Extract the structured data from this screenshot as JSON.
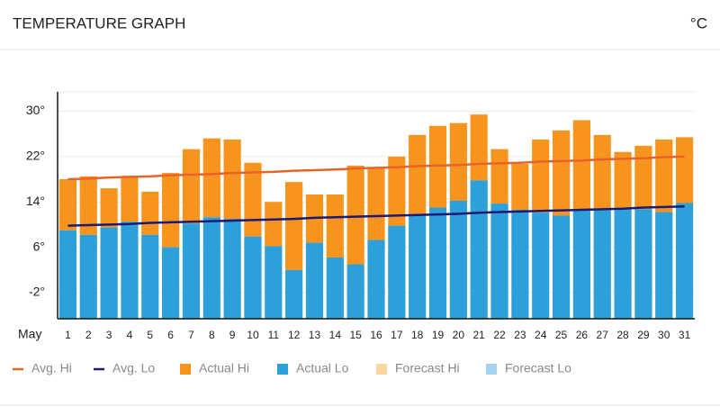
{
  "chart_data": {
    "type": "bar",
    "title": "TEMPERATURE GRAPH",
    "unit": "°C",
    "x_label": "May",
    "categories": [
      "1",
      "2",
      "3",
      "4",
      "5",
      "6",
      "7",
      "8",
      "9",
      "10",
      "11",
      "12",
      "13",
      "14",
      "15",
      "16",
      "17",
      "18",
      "19",
      "20",
      "21",
      "22",
      "23",
      "24",
      "25",
      "26",
      "27",
      "28",
      "29",
      "30",
      "31"
    ],
    "ylim": [
      -6.6,
      33.4
    ],
    "yticks": [
      {
        "value": 30,
        "label": "30°"
      },
      {
        "value": 22,
        "label": "22°"
      },
      {
        "value": 14,
        "label": "14°"
      },
      {
        "value": 6,
        "label": "6°"
      },
      {
        "value": -2,
        "label": "-2°"
      }
    ],
    "grid": true,
    "series": [
      {
        "name": "Avg. Hi",
        "type": "line",
        "color": "#e8632a",
        "values": [
          18.0,
          18.1,
          18.3,
          18.4,
          18.5,
          18.7,
          18.8,
          18.9,
          19.1,
          19.2,
          19.3,
          19.5,
          19.6,
          19.7,
          19.9,
          20.0,
          20.1,
          20.3,
          20.4,
          20.5,
          20.7,
          20.8,
          20.9,
          21.1,
          21.2,
          21.3,
          21.5,
          21.6,
          21.7,
          21.9,
          22.0
        ]
      },
      {
        "name": "Avg. Lo",
        "type": "line",
        "color": "#1c1a78",
        "values": [
          9.8,
          9.9,
          10.0,
          10.1,
          10.3,
          10.4,
          10.5,
          10.6,
          10.7,
          10.8,
          10.9,
          11.0,
          11.2,
          11.3,
          11.4,
          11.5,
          11.6,
          11.7,
          11.8,
          11.9,
          12.1,
          12.2,
          12.3,
          12.4,
          12.5,
          12.6,
          12.7,
          12.8,
          13.0,
          13.1,
          13.2
        ]
      },
      {
        "name": "Actual Hi",
        "type": "bar",
        "color": "#f7941d",
        "values": [
          18.0,
          18.5,
          16.4,
          18.6,
          15.8,
          19.1,
          23.3,
          25.2,
          25.0,
          20.9,
          14.0,
          17.5,
          15.3,
          15.3,
          20.4,
          20.1,
          22.0,
          25.8,
          27.4,
          27.9,
          29.4,
          23.3,
          20.7,
          25.0,
          26.6,
          28.4,
          25.8,
          22.8,
          23.9,
          25.0,
          25.4
        ]
      },
      {
        "name": "Actual Lo",
        "type": "bar",
        "color": "#2d9fd9",
        "values": [
          9.0,
          8.2,
          9.5,
          10.5,
          8.2,
          6.0,
          10.2,
          11.3,
          11.0,
          7.9,
          6.2,
          2.0,
          6.8,
          4.2,
          3.0,
          7.3,
          9.8,
          11.6,
          13.0,
          14.2,
          17.8,
          13.7,
          12.6,
          12.1,
          11.6,
          12.6,
          12.7,
          12.9,
          12.7,
          12.2,
          13.8
        ]
      },
      {
        "name": "Forecast Hi",
        "type": "bar",
        "color": "#fdd49e",
        "values": [
          null,
          null,
          null,
          null,
          null,
          null,
          null,
          null,
          null,
          null,
          null,
          null,
          null,
          null,
          null,
          null,
          null,
          null,
          null,
          null,
          null,
          null,
          null,
          null,
          null,
          null,
          null,
          null,
          null,
          null,
          null
        ]
      },
      {
        "name": "Forecast Lo",
        "type": "bar",
        "color": "#a3d3f0",
        "values": [
          null,
          null,
          null,
          null,
          null,
          null,
          null,
          null,
          null,
          null,
          null,
          null,
          null,
          null,
          null,
          null,
          null,
          null,
          null,
          null,
          null,
          null,
          null,
          null,
          null,
          null,
          null,
          null,
          null,
          null,
          null
        ]
      }
    ]
  }
}
